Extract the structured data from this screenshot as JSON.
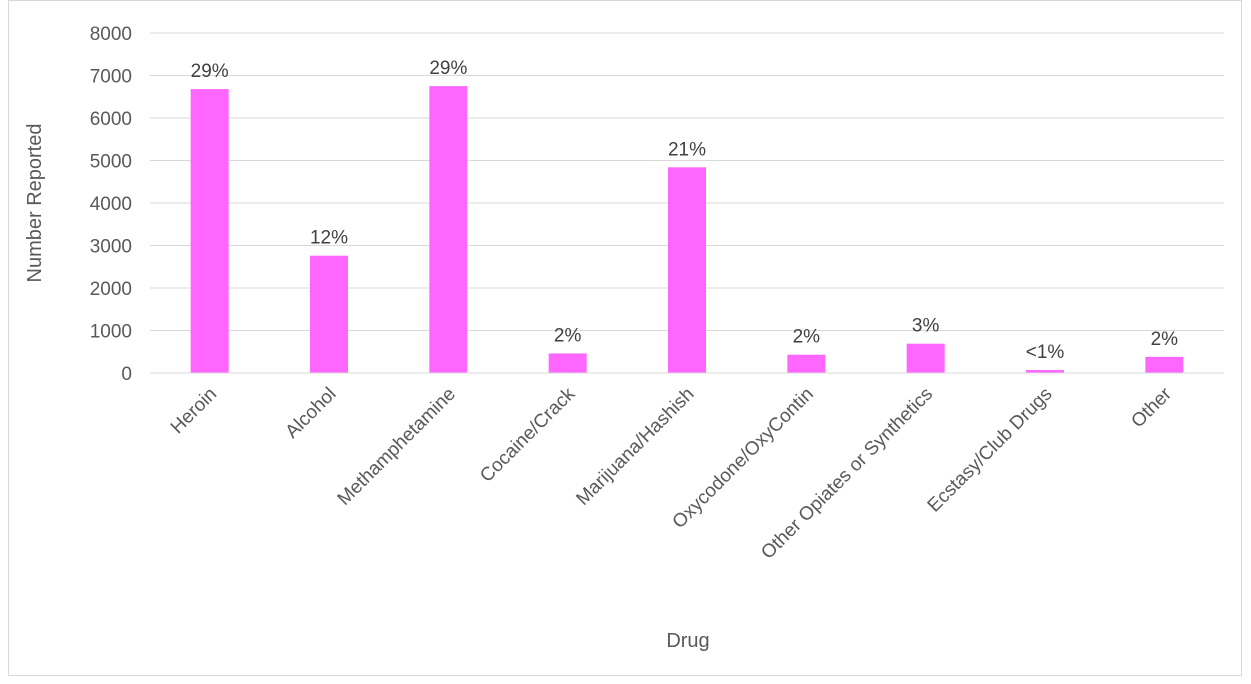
{
  "chart_data": {
    "type": "bar",
    "title": "",
    "xlabel": "Drug",
    "ylabel": "Number Reported",
    "ylim": [
      0,
      8000
    ],
    "yticks": [
      0,
      1000,
      2000,
      3000,
      4000,
      5000,
      6000,
      7000,
      8000
    ],
    "grid": true,
    "legend": "none",
    "bar_color": "#ff66ff",
    "categories": [
      "Heroin",
      "Alcohol",
      "Methamphetamine",
      "Cocaine/Crack",
      "Marijuana/Hashish",
      "Oxycodone/OxyContin",
      "Other Opiates or Synthetics",
      "Ecstasy/Club Drugs",
      "Other"
    ],
    "values": [
      6680,
      2760,
      6750,
      460,
      4840,
      430,
      690,
      70,
      380
    ],
    "data_labels": [
      "29%",
      "12%",
      "29%",
      "2%",
      "21%",
      "2%",
      "3%",
      "<1%",
      "2%"
    ]
  }
}
